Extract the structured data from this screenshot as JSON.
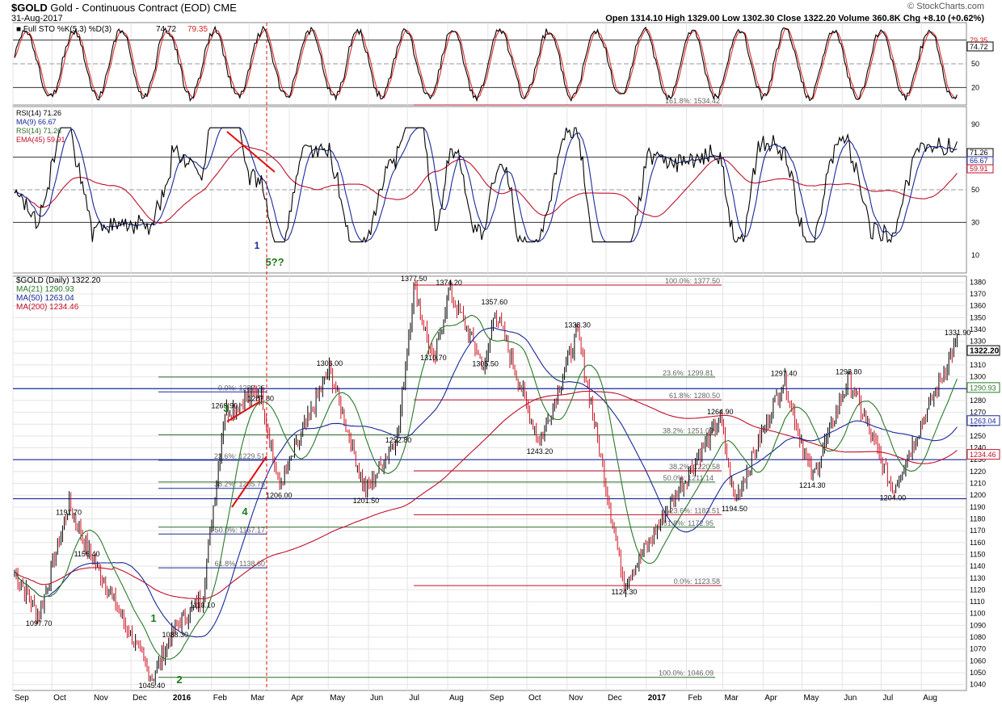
{
  "header": {
    "symbol": "$GOLD",
    "name": "Gold - Continuous Contract (EOD)",
    "exchange": "CME",
    "date": "31-Aug-2017",
    "quote": "Open 1314.10  High 1329.00  Low 1302.30  Close 1322.20  Volume 360.8K  Chg +8.10 (+0.62%)",
    "watermark": "© StockCharts.com"
  },
  "colors": {
    "price_up": "#000000",
    "price_down": "#d01020",
    "ma21": "#2a7a2a",
    "ma50": "#1a2a9a",
    "ma200": "#c0102a",
    "fib_red": "#c0102a",
    "fib_green": "#2a6a2a",
    "fib_blue": "#1a2a9a",
    "wave_red": "#e01010",
    "wave_green": "#1a7a1a"
  },
  "sto_panel": {
    "legend": "Full STO %K(5,3) %D(3)",
    "k_value": "74.72",
    "d_value": "79.35",
    "ticks": [
      "50",
      "20"
    ],
    "last_k": "74.72",
    "last_d": "79.35",
    "fib_text": "161.8%: 1534.42"
  },
  "rsi_panel": {
    "legend": [
      {
        "text": "RSI(14) 71.26",
        "color": "#000000"
      },
      {
        "text": "MA(9) 66.67",
        "color": "#1a2a9a"
      },
      {
        "text": "RSI(14) 71.26",
        "color": "#2a6a2a"
      },
      {
        "text": "EMA(45) 59.91",
        "color": "#c0102a"
      }
    ],
    "ticks": [
      "90",
      "70",
      "50",
      "30",
      "10"
    ],
    "last_rsi": "71.26",
    "last_ma": "66.67",
    "last_ema": "59.91"
  },
  "price_panel": {
    "legend": [
      {
        "text": "$GOLD (Daily) 1322.20",
        "color": "#000000"
      },
      {
        "text": "MA(21) 1290.93",
        "color": "#2a7a2a"
      },
      {
        "text": "MA(50) 1263.04",
        "color": "#1a2a9a"
      },
      {
        "text": "MA(200) 1234.46",
        "color": "#c0102a"
      }
    ],
    "axis_labels": [
      "1380",
      "1370",
      "1360",
      "1350",
      "1340",
      "1330",
      "1320",
      "1310",
      "1300",
      "1290",
      "1280",
      "1270",
      "1260",
      "1250",
      "1240",
      "1230",
      "1220",
      "1210",
      "1200",
      "1190",
      "1180",
      "1170",
      "1160",
      "1150",
      "1140",
      "1130",
      "1120",
      "1110",
      "1100",
      "1090",
      "1080",
      "1070",
      "1060",
      "1050",
      "1040"
    ],
    "last_price": "1322.20",
    "last_ma21": "1290.93",
    "last_ma50": "1263.04",
    "last_ma200": "1234.46"
  },
  "x_axis": [
    "Sep",
    "Oct",
    "Nov",
    "Dec",
    "2016",
    "Feb",
    "Mar",
    "Apr",
    "May",
    "Jun",
    "Jul",
    "Aug",
    "Sep",
    "Oct",
    "Nov",
    "Dec",
    "2017",
    "Feb",
    "Mar",
    "Apr",
    "May",
    "Jun",
    "Jul",
    "Aug"
  ],
  "x_axis_bold": [
    "2016",
    "2017"
  ],
  "chart_data": {
    "type": "line",
    "title": "$GOLD Gold - Continuous Contract (EOD) CME",
    "xlabel": "",
    "ylabel": "",
    "ylim": [
      1035,
      1385
    ],
    "series": [
      {
        "name": "$GOLD (Daily)",
        "x": [
          "2015-09",
          "2015-10",
          "2015-11",
          "2015-12",
          "2016-01",
          "2016-02",
          "2016-03",
          "2016-04",
          "2016-05",
          "2016-06",
          "2016-07",
          "2016-08",
          "2016-09",
          "2016-10",
          "2016-11",
          "2016-12",
          "2017-01",
          "2017-02",
          "2017-03",
          "2017-04",
          "2017-05",
          "2017-06",
          "2017-07",
          "2017-08"
        ],
        "values": [
          1120,
          1165,
          1080,
          1060,
          1095,
          1235,
          1245,
          1240,
          1275,
          1245,
          1335,
          1350,
          1320,
          1260,
          1285,
          1145,
          1195,
          1240,
          1215,
          1275,
          1235,
          1270,
          1225,
          1322.2
        ]
      }
    ],
    "swing_labels": [
      {
        "date": "2015-09-21",
        "price": 1097.7
      },
      {
        "date": "2015-10-14",
        "price": 1191.7
      },
      {
        "date": "2015-10-28",
        "price": 1156.4
      },
      {
        "date": "2015-12-17",
        "price": 1045.4
      },
      {
        "date": "2016-01-04",
        "price": 1088.3
      },
      {
        "date": "2016-01-25",
        "price": 1113.1
      },
      {
        "date": "2016-02-11",
        "price": 1269.9
      },
      {
        "date": "2016-03-10",
        "price": 1287.8
      },
      {
        "date": "2016-03-24",
        "price": 1206.0
      },
      {
        "date": "2016-05-02",
        "price": 1306.0
      },
      {
        "date": "2016-05-30",
        "price": 1201.5
      },
      {
        "date": "2016-06-24",
        "price": 1252.8
      },
      {
        "date": "2016-07-06",
        "price": 1377.5
      },
      {
        "date": "2016-07-21",
        "price": 1310.7
      },
      {
        "date": "2016-08-02",
        "price": 1374.2
      },
      {
        "date": "2016-08-30",
        "price": 1305.5
      },
      {
        "date": "2016-09-06",
        "price": 1357.6
      },
      {
        "date": "2016-10-11",
        "price": 1243.2
      },
      {
        "date": "2016-11-09",
        "price": 1338.3
      },
      {
        "date": "2016-12-15",
        "price": 1124.3
      },
      {
        "date": "2017-02-27",
        "price": 1264.9
      },
      {
        "date": "2017-03-10",
        "price": 1194.5
      },
      {
        "date": "2017-04-17",
        "price": 1297.4
      },
      {
        "date": "2017-05-09",
        "price": 1214.3
      },
      {
        "date": "2017-06-06",
        "price": 1298.8
      },
      {
        "date": "2017-07-10",
        "price": 1204.0
      },
      {
        "date": "2017-08-29",
        "price": 1331.9
      }
    ],
    "fib_labels": [
      {
        "text": "100.0%: 1377.50",
        "price": 1377.5,
        "color": "#c0102a"
      },
      {
        "text": "23.6%: 1299.81",
        "price": 1299.81,
        "color": "#2a6a2a"
      },
      {
        "text": "61.8%: 1280.50",
        "price": 1280.5,
        "color": "#c0102a"
      },
      {
        "text": "38.2%: 1251.03",
        "price": 1251.03,
        "color": "#2a6a2a"
      },
      {
        "text": "38.2%: 1220.58",
        "price": 1220.58,
        "color": "#c0102a"
      },
      {
        "text": "50.0%: 1211.14",
        "price": 1211.14,
        "color": "#2a6a2a"
      },
      {
        "text": "23.6%: 1183.51",
        "price": 1183.51,
        "color": "#c0102a"
      },
      {
        "text": "61.8%: 1172.95",
        "price": 1172.95,
        "color": "#2a6a2a"
      },
      {
        "text": "0.0%: 1123.58",
        "price": 1123.58,
        "color": "#c0102a"
      },
      {
        "text": "100.0%: 1046.09",
        "price": 1046.09,
        "color": "#2a6a2a"
      },
      {
        "text": "0.0%: 1287.25",
        "price": 1287.25,
        "color": "#1a2a9a"
      },
      {
        "text": "23.6%: 1229.51",
        "price": 1229.51,
        "color": "#1a2a9a"
      },
      {
        "text": "38.2%: 1205.75",
        "price": 1205.75,
        "color": "#1a2a9a"
      },
      {
        "text": "50.0%: 1167.17",
        "price": 1167.17,
        "color": "#1a2a9a"
      },
      {
        "text": "61.8%: 1138.60",
        "price": 1138.6,
        "color": "#1a2a9a"
      }
    ],
    "wave_labels": [
      "1",
      "2",
      "3",
      "4",
      "5??"
    ],
    "horizontal_levels_blue": [
      1290,
      1230,
      1197
    ]
  }
}
